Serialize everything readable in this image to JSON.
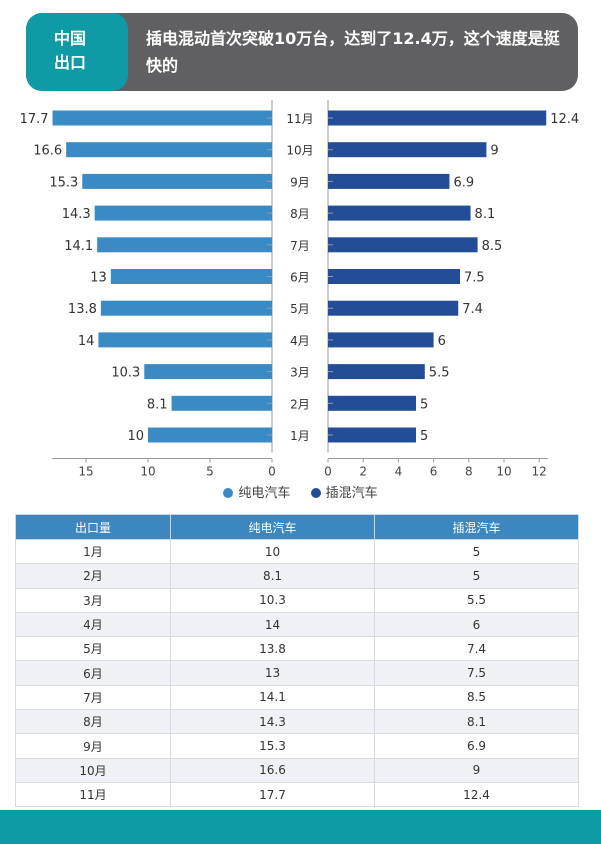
{
  "header": {
    "tag_line1": "中国",
    "tag_line2": "出口",
    "title": "插电混动首次突破10万台，达到了12.4万，这个速度是挺快的"
  },
  "chart_data": {
    "type": "bar",
    "orientation": "horizontal-butterfly",
    "categories": [
      "1月",
      "2月",
      "3月",
      "4月",
      "5月",
      "6月",
      "7月",
      "8月",
      "9月",
      "10月",
      "11月"
    ],
    "series": [
      {
        "name": "纯电汽车",
        "values": [
          10,
          8.1,
          10.3,
          14,
          13.8,
          13,
          14.1,
          14.3,
          15.3,
          16.6,
          17.7
        ],
        "color": "#3a8bc5"
      },
      {
        "name": "插混汽车",
        "values": [
          5,
          5,
          5.5,
          6,
          7.4,
          7.5,
          8.5,
          8.1,
          6.9,
          9,
          12.4
        ],
        "color": "#234d96"
      }
    ],
    "left_axis": {
      "range": [
        0,
        18.5
      ],
      "ticks": [
        15,
        10,
        5,
        0
      ]
    },
    "right_axis": {
      "range": [
        0,
        12.4
      ],
      "ticks": [
        0,
        2,
        4,
        6,
        8,
        10,
        12
      ]
    },
    "legend": "bottom-center"
  },
  "table": {
    "headers": [
      "出口量",
      "纯电汽车",
      "插混汽车"
    ],
    "rows": [
      [
        "1月",
        "10",
        "5"
      ],
      [
        "2月",
        "8.1",
        "5"
      ],
      [
        "3月",
        "10.3",
        "5.5"
      ],
      [
        "4月",
        "14",
        "6"
      ],
      [
        "5月",
        "13.8",
        "7.4"
      ],
      [
        "6月",
        "13",
        "7.5"
      ],
      [
        "7月",
        "14.1",
        "8.5"
      ],
      [
        "8月",
        "14.3",
        "8.1"
      ],
      [
        "9月",
        "15.3",
        "6.9"
      ],
      [
        "10月",
        "16.6",
        "9"
      ],
      [
        "11月",
        "17.7",
        "12.4"
      ]
    ]
  }
}
